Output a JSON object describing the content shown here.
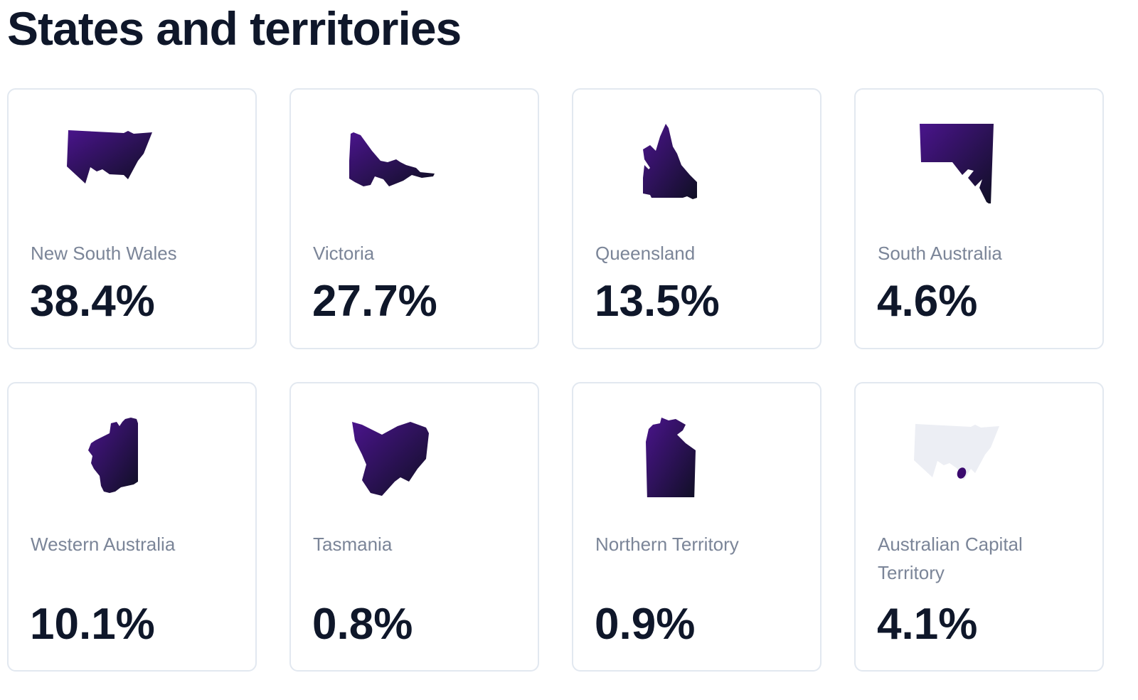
{
  "heading": "States and territories",
  "colors": {
    "shape_gradient_start": "#4a148c",
    "shape_gradient_end": "#0f0f23",
    "nsw_outline_fill": "#eceef4",
    "card_border": "#e2e8f0",
    "label": "#7b8598",
    "value": "#0f172a"
  },
  "states": [
    {
      "name": "New South Wales",
      "value": "38.4%",
      "icon": "new-south-wales-map-icon"
    },
    {
      "name": "Victoria",
      "value": "27.7%",
      "icon": "victoria-map-icon"
    },
    {
      "name": "Queensland",
      "value": "13.5%",
      "icon": "queensland-map-icon"
    },
    {
      "name": "South Australia",
      "value": "4.6%",
      "icon": "south-australia-map-icon"
    },
    {
      "name": "Western Australia",
      "value": "10.1%",
      "icon": "western-australia-map-icon"
    },
    {
      "name": "Tasmania",
      "value": "0.8%",
      "icon": "tasmania-map-icon"
    },
    {
      "name": "Northern Territory",
      "value": "0.9%",
      "icon": "northern-territory-map-icon"
    },
    {
      "name": "Australian Capital Territory",
      "value": "4.1%",
      "icon": "australian-capital-territory-map-icon"
    }
  ]
}
